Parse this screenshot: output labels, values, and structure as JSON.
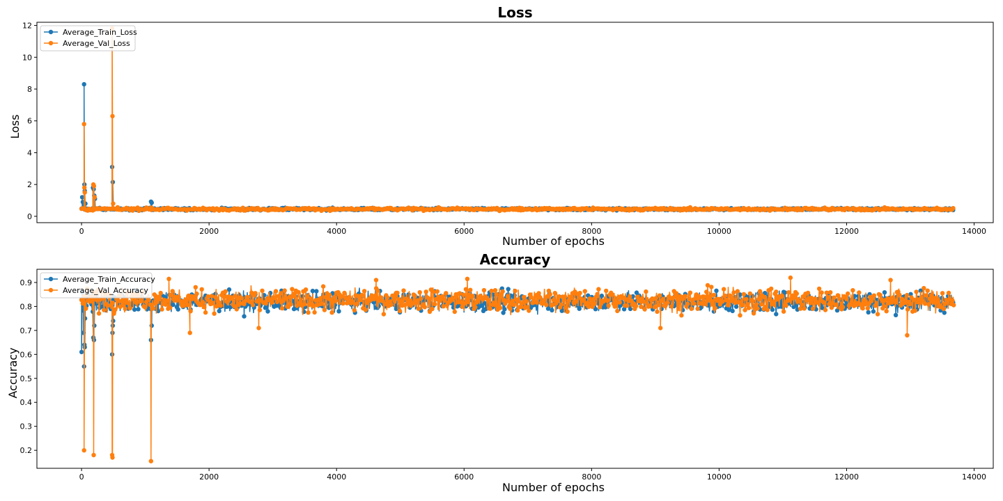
{
  "colors": {
    "train": "#1f77b4",
    "val": "#ff7f0e"
  },
  "chart_data": [
    {
      "type": "line",
      "title": "Loss",
      "xlabel": "Number of epochs",
      "ylabel": "Loss",
      "xlim": [
        -700,
        14300
      ],
      "ylim": [
        -0.4,
        12.2
      ],
      "xticks": [
        0,
        2000,
        4000,
        6000,
        8000,
        10000,
        12000,
        14000
      ],
      "yticks": [
        0,
        2,
        4,
        6,
        8,
        10,
        12
      ],
      "legend_position": "top-left",
      "grid": false,
      "x_range": [
        0,
        13680
      ],
      "series": [
        {
          "name": "Average_Train_Loss",
          "color_key": "train",
          "baseline": 0.45,
          "noise": 0.06,
          "spikes": [
            [
              10,
              1.2
            ],
            [
              20,
              0.9
            ],
            [
              30,
              0.85
            ],
            [
              40,
              8.3
            ],
            [
              45,
              2.0
            ],
            [
              50,
              1.6
            ],
            [
              60,
              0.8
            ],
            [
              180,
              1.8
            ],
            [
              190,
              1.7
            ],
            [
              200,
              1.3
            ],
            [
              210,
              1.1
            ],
            [
              480,
              3.1
            ],
            [
              490,
              2.15
            ],
            [
              1090,
              0.92
            ],
            [
              1100,
              0.85
            ]
          ]
        },
        {
          "name": "Average_Val_Loss",
          "color_key": "val",
          "baseline": 0.45,
          "noise": 0.07,
          "spikes": [
            [
              15,
              0.5
            ],
            [
              40,
              5.8
            ],
            [
              45,
              1.8
            ],
            [
              50,
              1.5
            ],
            [
              185,
              2.0
            ],
            [
              195,
              1.9
            ],
            [
              205,
              1.2
            ],
            [
              480,
              11.8
            ],
            [
              485,
              6.3
            ],
            [
              495,
              0.8
            ],
            [
              1095,
              0.55
            ]
          ]
        }
      ]
    },
    {
      "type": "line",
      "title": "Accuracy",
      "xlabel": "Number of epochs",
      "ylabel": "Accuracy",
      "xlim": [
        -700,
        14300
      ],
      "ylim": [
        0.125,
        0.955
      ],
      "xticks": [
        0,
        2000,
        4000,
        6000,
        8000,
        10000,
        12000,
        14000
      ],
      "yticks": [
        0.2,
        0.3,
        0.4,
        0.5,
        0.6,
        0.7,
        0.8,
        0.9
      ],
      "legend_position": "top-left",
      "grid": false,
      "x_range": [
        0,
        13680
      ],
      "series": [
        {
          "name": "Average_Train_Accuracy",
          "color_key": "train",
          "baseline": 0.82,
          "noise": 0.035,
          "spikes": [
            [
              0,
              0.61
            ],
            [
              30,
              0.69
            ],
            [
              40,
              0.55
            ],
            [
              45,
              0.64
            ],
            [
              50,
              0.63
            ],
            [
              55,
              0.75
            ],
            [
              185,
              0.67
            ],
            [
              195,
              0.66
            ],
            [
              200,
              0.72
            ],
            [
              480,
              0.6
            ],
            [
              485,
              0.69
            ],
            [
              490,
              0.72
            ],
            [
              495,
              0.74
            ],
            [
              1090,
              0.66
            ],
            [
              1100,
              0.72
            ]
          ]
        },
        {
          "name": "Average_Val_Accuracy",
          "color_key": "val",
          "baseline": 0.825,
          "noise": 0.04,
          "spikes": [
            [
              40,
              0.2
            ],
            [
              190,
              0.18
            ],
            [
              480,
              0.18
            ],
            [
              485,
              0.17
            ],
            [
              1090,
              0.155
            ],
            [
              1700,
              0.69
            ],
            [
              2780,
              0.71
            ],
            [
              9080,
              0.71
            ],
            [
              12950,
              0.68
            ],
            [
              1370,
              0.915
            ],
            [
              4620,
              0.91
            ],
            [
              6050,
              0.915
            ],
            [
              11120,
              0.92
            ],
            [
              12690,
              0.91
            ]
          ]
        }
      ]
    }
  ]
}
